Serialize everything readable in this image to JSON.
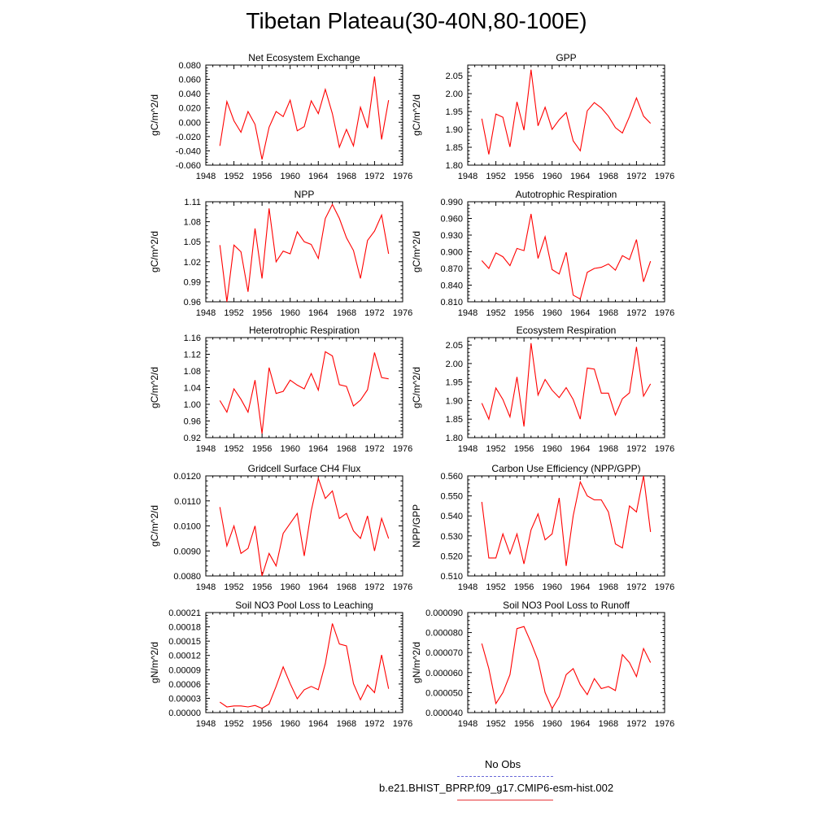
{
  "figure": {
    "title": "Tibetan Plateau(30-40N,80-100E)",
    "legend": [
      {
        "label": "No Obs",
        "color": "#6a6ad8",
        "style": "dashed"
      },
      {
        "label": "b.e21.BHIST_BPRP.f09_g17.CMIP6-esm-hist.002",
        "color": "#e8373a",
        "style": "solid"
      }
    ]
  },
  "chart_data": [
    {
      "type": "line",
      "title": "Net Ecosystem Exchange",
      "ylabel": "gC/m^2/d",
      "xlim": [
        1948,
        1976
      ],
      "xticks": [
        "1948",
        "1952",
        "1956",
        "1960",
        "1964",
        "1968",
        "1972",
        "1976"
      ],
      "ylim": [
        -0.06,
        0.08
      ],
      "yticks": [
        "-0.060",
        "-0.040",
        "-0.020",
        "0.000",
        "0.020",
        "0.040",
        "0.060",
        "0.080"
      ],
      "series": [
        {
          "color": "#ff0000",
          "x": [
            1950,
            1951,
            1952,
            1953,
            1954,
            1955,
            1956,
            1957,
            1958,
            1959,
            1960,
            1961,
            1962,
            1963,
            1964,
            1965,
            1966,
            1967,
            1968,
            1969,
            1970,
            1971,
            1972,
            1973,
            1974
          ],
          "y": [
            -0.033,
            0.029,
            0.002,
            -0.014,
            0.015,
            -0.003,
            -0.052,
            -0.007,
            0.015,
            0.008,
            0.031,
            -0.012,
            -0.006,
            0.03,
            0.012,
            0.046,
            0.012,
            -0.035,
            -0.01,
            -0.033,
            0.021,
            -0.008,
            0.064,
            -0.024,
            0.031
          ]
        }
      ]
    },
    {
      "type": "line",
      "title": "GPP",
      "ylabel": "gC/m^2/d",
      "xlim": [
        1948,
        1976
      ],
      "xticks": [
        "1948",
        "1952",
        "1956",
        "1960",
        "1964",
        "1968",
        "1972",
        "1976"
      ],
      "ylim": [
        1.8,
        2.08
      ],
      "yticks": [
        "1.80",
        "1.85",
        "1.90",
        "1.95",
        "2.00",
        "2.05"
      ],
      "series": [
        {
          "color": "#ff0000",
          "x": [
            1950,
            1951,
            1952,
            1953,
            1954,
            1955,
            1956,
            1957,
            1958,
            1959,
            1960,
            1961,
            1962,
            1963,
            1964,
            1965,
            1966,
            1967,
            1968,
            1969,
            1970,
            1971,
            1972,
            1973,
            1974
          ],
          "y": [
            1.93,
            1.83,
            1.943,
            1.934,
            1.851,
            1.977,
            1.898,
            2.067,
            1.91,
            1.962,
            1.9,
            1.927,
            1.947,
            1.868,
            1.84,
            1.952,
            1.975,
            1.96,
            1.937,
            1.905,
            1.89,
            1.936,
            1.988,
            1.937,
            1.917
          ]
        }
      ]
    },
    {
      "type": "line",
      "title": "NPP",
      "ylabel": "gC/m^2/d",
      "xlim": [
        1948,
        1976
      ],
      "xticks": [
        "1948",
        "1952",
        "1956",
        "1960",
        "1964",
        "1968",
        "1972",
        "1976"
      ],
      "ylim": [
        0.96,
        1.11
      ],
      "yticks": [
        "0.96",
        "0.99",
        "1.02",
        "1.05",
        "1.08",
        "1.11"
      ],
      "series": [
        {
          "color": "#ff0000",
          "x": [
            1950,
            1951,
            1952,
            1953,
            1954,
            1955,
            1956,
            1957,
            1958,
            1959,
            1960,
            1961,
            1962,
            1963,
            1964,
            1965,
            1966,
            1967,
            1968,
            1969,
            1970,
            1971,
            1972,
            1973,
            1974
          ],
          "y": [
            1.045,
            0.96,
            1.045,
            1.035,
            0.975,
            1.07,
            0.995,
            1.1,
            1.02,
            1.036,
            1.032,
            1.065,
            1.05,
            1.046,
            1.025,
            1.085,
            1.106,
            1.085,
            1.056,
            1.037,
            0.995,
            1.052,
            1.066,
            1.09,
            1.032
          ]
        }
      ]
    },
    {
      "type": "line",
      "title": "Autotrophic Respiration",
      "ylabel": "gC/m^2/d",
      "xlim": [
        1948,
        1976
      ],
      "xticks": [
        "1948",
        "1952",
        "1956",
        "1960",
        "1964",
        "1968",
        "1972",
        "1976"
      ],
      "ylim": [
        0.81,
        0.99
      ],
      "yticks": [
        "0.810",
        "0.840",
        "0.870",
        "0.900",
        "0.930",
        "0.960",
        "0.990"
      ],
      "series": [
        {
          "color": "#ff0000",
          "x": [
            1950,
            1951,
            1952,
            1953,
            1954,
            1955,
            1956,
            1957,
            1958,
            1959,
            1960,
            1961,
            1962,
            1963,
            1964,
            1965,
            1966,
            1967,
            1968,
            1969,
            1970,
            1971,
            1972,
            1973,
            1974
          ],
          "y": [
            0.884,
            0.87,
            0.898,
            0.891,
            0.875,
            0.906,
            0.902,
            0.968,
            0.888,
            0.927,
            0.868,
            0.86,
            0.899,
            0.822,
            0.815,
            0.863,
            0.87,
            0.872,
            0.878,
            0.867,
            0.893,
            0.886,
            0.922,
            0.846,
            0.883
          ]
        }
      ]
    },
    {
      "type": "line",
      "title": "Heterotrophic Respiration",
      "ylabel": "gC/m^2/d",
      "xlim": [
        1948,
        1976
      ],
      "xticks": [
        "1948",
        "1952",
        "1956",
        "1960",
        "1964",
        "1968",
        "1972",
        "1976"
      ],
      "ylim": [
        0.92,
        1.16
      ],
      "yticks": [
        "0.92",
        "0.96",
        "1.00",
        "1.04",
        "1.08",
        "1.12",
        "1.16"
      ],
      "series": [
        {
          "color": "#ff0000",
          "x": [
            1950,
            1951,
            1952,
            1953,
            1954,
            1955,
            1956,
            1957,
            1958,
            1959,
            1960,
            1961,
            1962,
            1963,
            1964,
            1965,
            1966,
            1967,
            1968,
            1969,
            1970,
            1971,
            1972,
            1973,
            1974
          ],
          "y": [
            1.009,
            0.981,
            1.037,
            1.012,
            0.981,
            1.058,
            0.93,
            1.088,
            1.026,
            1.031,
            1.058,
            1.046,
            1.037,
            1.074,
            1.034,
            1.126,
            1.116,
            1.047,
            1.043,
            0.996,
            1.01,
            1.035,
            1.124,
            1.064,
            1.061
          ]
        }
      ]
    },
    {
      "type": "line",
      "title": "Ecosystem Respiration",
      "ylabel": "gC/m^2/d",
      "xlim": [
        1948,
        1976
      ],
      "xticks": [
        "1948",
        "1952",
        "1956",
        "1960",
        "1964",
        "1968",
        "1972",
        "1976"
      ],
      "ylim": [
        1.8,
        2.07
      ],
      "yticks": [
        "1.80",
        "1.85",
        "1.90",
        "1.95",
        "2.00",
        "2.05"
      ],
      "series": [
        {
          "color": "#ff0000",
          "x": [
            1950,
            1951,
            1952,
            1953,
            1954,
            1955,
            1956,
            1957,
            1958,
            1959,
            1960,
            1961,
            1962,
            1963,
            1964,
            1965,
            1966,
            1967,
            1968,
            1969,
            1970,
            1971,
            1972,
            1973,
            1974
          ],
          "y": [
            1.893,
            1.85,
            1.934,
            1.903,
            1.856,
            1.964,
            1.83,
            2.055,
            1.915,
            1.957,
            1.928,
            1.908,
            1.935,
            1.903,
            1.85,
            1.988,
            1.985,
            1.92,
            1.92,
            1.861,
            1.905,
            1.921,
            2.045,
            1.912,
            1.945
          ]
        }
      ]
    },
    {
      "type": "line",
      "title": "Gridcell Surface CH4 Flux",
      "ylabel": "gC/m^2/d",
      "xlim": [
        1948,
        1976
      ],
      "xticks": [
        "1948",
        "1952",
        "1956",
        "1960",
        "1964",
        "1968",
        "1972",
        "1976"
      ],
      "ylim": [
        0.008,
        0.012
      ],
      "yticks": [
        "0.0080",
        "0.0090",
        "0.0100",
        "0.0110",
        "0.0120"
      ],
      "series": [
        {
          "color": "#ff0000",
          "x": [
            1950,
            1951,
            1952,
            1953,
            1954,
            1955,
            1956,
            1957,
            1958,
            1959,
            1960,
            1961,
            1962,
            1963,
            1964,
            1965,
            1966,
            1967,
            1968,
            1969,
            1970,
            1971,
            1972,
            1973,
            1974
          ],
          "y": [
            0.01075,
            0.0092,
            0.01,
            0.0089,
            0.0091,
            0.01,
            0.008,
            0.0089,
            0.0084,
            0.0097,
            0.0101,
            0.0105,
            0.0088,
            0.0106,
            0.0119,
            0.0111,
            0.0114,
            0.0103,
            0.0105,
            0.0098,
            0.0095,
            0.0104,
            0.009,
            0.0103,
            0.0095
          ]
        }
      ]
    },
    {
      "type": "line",
      "title": "Carbon Use Efficiency (NPP/GPP)",
      "ylabel": "NPP/GPP",
      "xlim": [
        1948,
        1976
      ],
      "xticks": [
        "1948",
        "1952",
        "1956",
        "1960",
        "1964",
        "1968",
        "1972",
        "1976"
      ],
      "ylim": [
        0.51,
        0.56
      ],
      "yticks": [
        "0.510",
        "0.520",
        "0.530",
        "0.540",
        "0.550",
        "0.560"
      ],
      "series": [
        {
          "color": "#ff0000",
          "x": [
            1950,
            1951,
            1952,
            1953,
            1954,
            1955,
            1956,
            1957,
            1958,
            1959,
            1960,
            1961,
            1962,
            1963,
            1964,
            1965,
            1966,
            1967,
            1968,
            1969,
            1970,
            1971,
            1972,
            1973,
            1974
          ],
          "y": [
            0.547,
            0.519,
            0.519,
            0.531,
            0.521,
            0.531,
            0.516,
            0.533,
            0.541,
            0.528,
            0.531,
            0.549,
            0.515,
            0.54,
            0.557,
            0.55,
            0.548,
            0.548,
            0.542,
            0.526,
            0.524,
            0.545,
            0.542,
            0.56,
            0.532
          ]
        }
      ]
    },
    {
      "type": "line",
      "title": "Soil NO3 Pool Loss to Leaching",
      "ylabel": "gN/m^2/d",
      "xlim": [
        1948,
        1976
      ],
      "xticks": [
        "1948",
        "1952",
        "1956",
        "1960",
        "1964",
        "1968",
        "1972",
        "1976"
      ],
      "ylim": [
        0,
        0.00021
      ],
      "yticks": [
        "0.00000",
        "0.00003",
        "0.00006",
        "0.00009",
        "0.00012",
        "0.00015",
        "0.00018",
        "0.00021"
      ],
      "series": [
        {
          "color": "#ff0000",
          "x": [
            1950,
            1951,
            1952,
            1953,
            1954,
            1955,
            1956,
            1957,
            1958,
            1959,
            1960,
            1961,
            1962,
            1963,
            1964,
            1965,
            1966,
            1967,
            1968,
            1969,
            1970,
            1971,
            1972,
            1973,
            1974
          ],
          "y": [
            2.2e-05,
            1.2e-05,
            1.4e-05,
            1.4e-05,
            1.2e-05,
            1.5e-05,
            9e-06,
            1.8e-05,
            5.5e-05,
            9.6e-05,
            6.1e-05,
            2.9e-05,
            4.8e-05,
            5.5e-05,
            4.8e-05,
            0.000103,
            0.000187,
            0.000144,
            0.00014,
            6.1e-05,
            2.7e-05,
            5.8e-05,
            4.2e-05,
            0.000121,
            5e-05
          ]
        }
      ]
    },
    {
      "type": "line",
      "title": "Soil NO3 Pool Loss to Runoff",
      "ylabel": "gN/m^2/d",
      "xlim": [
        1948,
        1976
      ],
      "xticks": [
        "1948",
        "1952",
        "1956",
        "1960",
        "1964",
        "1968",
        "1972",
        "1976"
      ],
      "ylim": [
        4e-05,
        9e-05
      ],
      "yticks": [
        "0.000040",
        "0.000050",
        "0.000060",
        "0.000070",
        "0.000080",
        "0.000090"
      ],
      "series": [
        {
          "color": "#ff0000",
          "x": [
            1950,
            1951,
            1952,
            1953,
            1954,
            1955,
            1956,
            1957,
            1958,
            1959,
            1960,
            1961,
            1962,
            1963,
            1964,
            1965,
            1966,
            1967,
            1968,
            1969,
            1970,
            1971,
            1972,
            1973,
            1974
          ],
          "y": [
            7.45e-05,
            6.2e-05,
            4.45e-05,
            5e-05,
            5.9e-05,
            8.2e-05,
            8.3e-05,
            7.5e-05,
            6.6e-05,
            5e-05,
            4.2e-05,
            4.8e-05,
            5.9e-05,
            6.2e-05,
            5.4e-05,
            4.9e-05,
            5.7e-05,
            5.2e-05,
            5.3e-05,
            5.1e-05,
            6.9e-05,
            6.5e-05,
            5.8e-05,
            7.2e-05,
            6.5e-05
          ]
        }
      ]
    }
  ]
}
